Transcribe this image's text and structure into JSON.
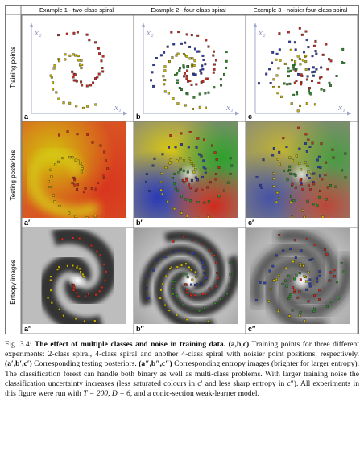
{
  "columns": [
    {
      "title": "Example 1 - two-class spiral"
    },
    {
      "title": "Example 2 - four-class spiral"
    },
    {
      "title": "Example 3 - noisier four-class spiral"
    }
  ],
  "rows": [
    {
      "title": "Training points"
    },
    {
      "title": "Testing posteriors"
    },
    {
      "title": "Entropy images"
    }
  ],
  "panel_labels": [
    [
      "a",
      "b",
      "c"
    ],
    [
      "a′",
      "b′",
      "c′"
    ],
    [
      "a″",
      "b″",
      "c″"
    ]
  ],
  "axes": {
    "x": "x₁",
    "y": "x₂"
  },
  "class_colors": [
    "#c8b400",
    "#cc2a1c",
    "#2e3fb0",
    "#2f8e2a"
  ],
  "caption": {
    "fig_label": "Fig. 3.4:",
    "title": "The effect of multiple classes and noise in training data.",
    "s1_label": "(a,b,c)",
    "s1_text": "Training points for three different experiments: 2-class spiral, 4-class spiral and another 4-class spiral with noisier point positions, respectively.",
    "s2_label": "(a′,b′,c′)",
    "s2_text": "Corresponding testing posteriors.",
    "s3_label": "(a″,b″,c″)",
    "s3_text": "Corresponding entropy images (brighter for larger entropy). The classification forest can handle both binary as well as multi-class problems. With larger training noise the classification uncertainty increases (less saturated colours in c′ and less sharp entropy in c″). All experiments in this figure were run with",
    "params": "T = 200, D = 6,",
    "s4_text": "and a conic-section weak-learner model."
  }
}
